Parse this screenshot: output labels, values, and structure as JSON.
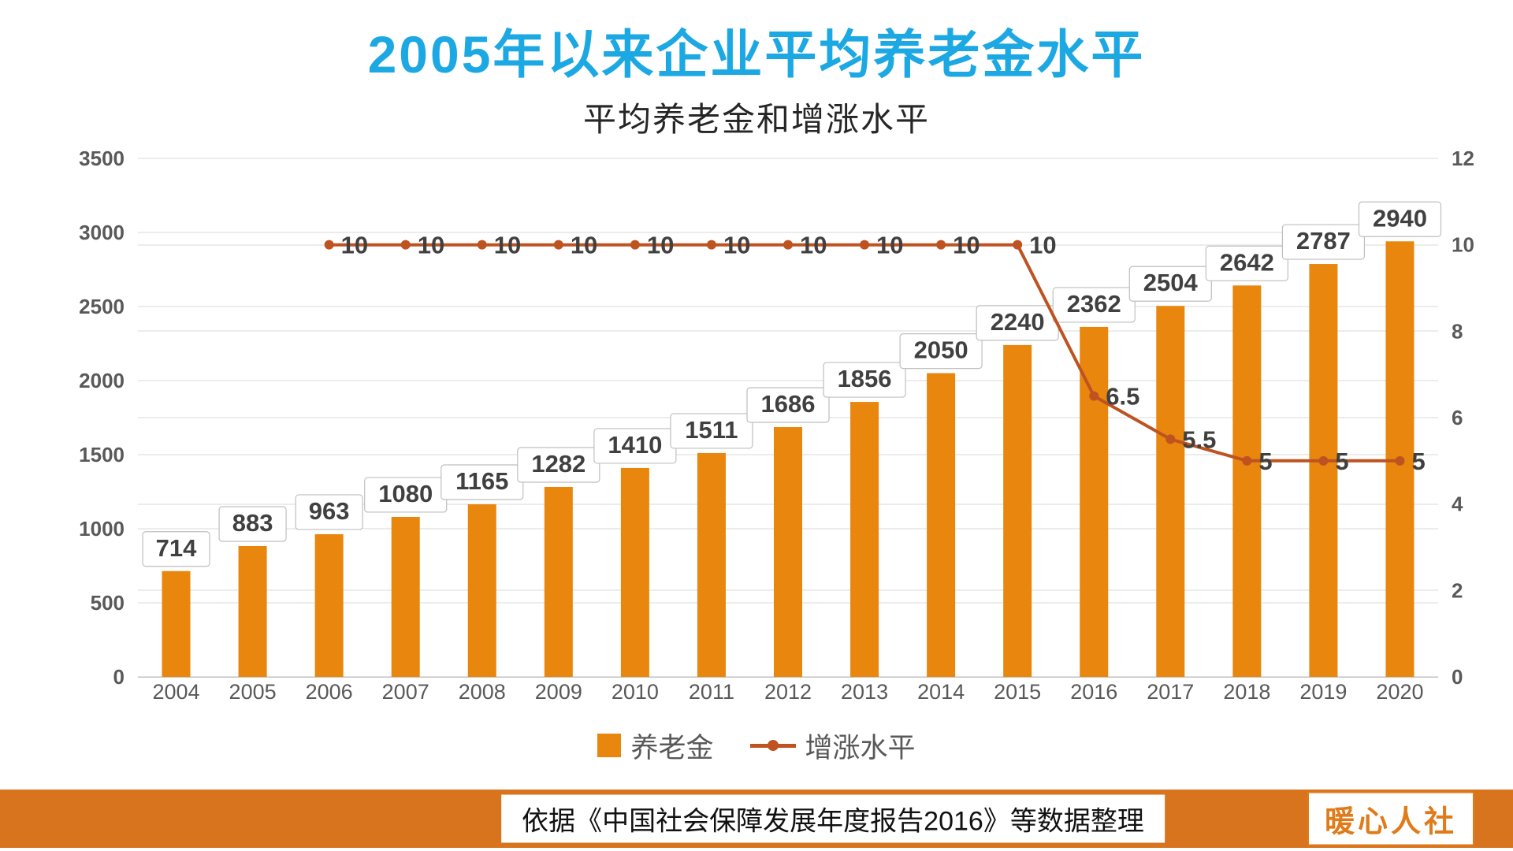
{
  "title": "2005年以来企业平均养老金水平",
  "colors": {
    "title": "#1CA8E3",
    "bar": "#E8860D",
    "line": "#BE5321",
    "band": "#D8731E",
    "brand_text": "#E07B1A",
    "grid": "#D9D9D9",
    "axis_line": "#BFBFBF",
    "tick_text": "#595959",
    "data_label_text": "#404040"
  },
  "chart_data": {
    "type": "bar",
    "title": "平均养老金和增涨水平",
    "categories": [
      "2004",
      "2005",
      "2006",
      "2007",
      "2008",
      "2009",
      "2010",
      "2011",
      "2012",
      "2013",
      "2014",
      "2015",
      "2016",
      "2017",
      "2018",
      "2019",
      "2020"
    ],
    "series": [
      {
        "name": "养老金",
        "type": "bar",
        "axis": "left",
        "color": "#E8860D",
        "values": [
          714,
          883,
          963,
          1080,
          1165,
          1282,
          1410,
          1511,
          1686,
          1856,
          2050,
          2240,
          2362,
          2504,
          2642,
          2787,
          2940
        ]
      },
      {
        "name": "增涨水平",
        "type": "line",
        "axis": "right",
        "color": "#BE5321",
        "x_start_index": 2,
        "values": [
          10,
          10,
          10,
          10,
          10,
          10,
          10,
          10,
          10,
          10,
          6.5,
          5.5,
          5,
          5,
          5
        ]
      }
    ],
    "y_left": {
      "min": 0,
      "max": 3500,
      "step": 500,
      "ticks": [
        0,
        500,
        1000,
        1500,
        2000,
        2500,
        3000,
        3500
      ]
    },
    "y_right": {
      "min": 0,
      "max": 12,
      "step": 2,
      "ticks": [
        0,
        2,
        4,
        6,
        8,
        10,
        12
      ]
    },
    "grid": true,
    "legend_position": "bottom",
    "data_labels": true
  },
  "footer": {
    "source": "依据《中国社会保障发展年度报告2016》等数据整理",
    "brand": "暖心人社"
  }
}
